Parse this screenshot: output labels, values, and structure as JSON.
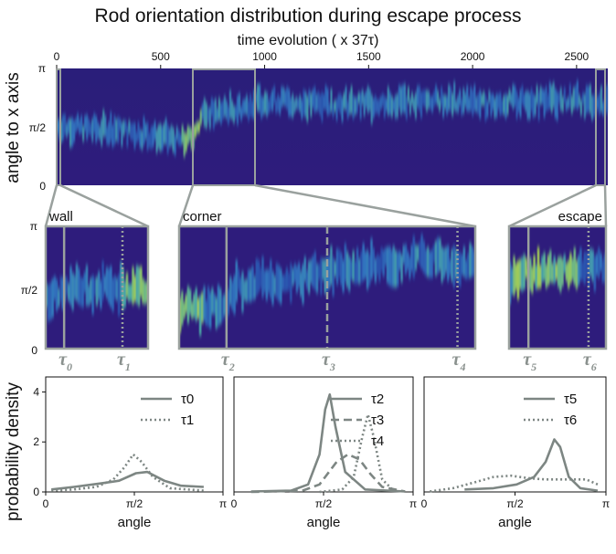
{
  "title": "Rod orientation distribution during escape process",
  "chart_data": [
    {
      "type": "heatmap",
      "title": "Rod orientation distribution during escape process",
      "xlabel": "time evolution ( x 37τ)",
      "ylabel": "angle to x axis",
      "xlim": [
        0,
        2650
      ],
      "x_ticks": [
        "0",
        "500",
        "1000",
        "1500",
        "2000",
        "2500"
      ],
      "x_tick_values": [
        0,
        500,
        1000,
        1500,
        2000,
        2500
      ],
      "y_ticks": [
        "0",
        "π/2",
        "π"
      ],
      "ylim": [
        0,
        3.1416
      ],
      "zoom_windows": [
        {
          "label": "wall",
          "start": 0,
          "end": 60
        },
        {
          "label": "corner",
          "start": 700,
          "end": 1000
        },
        {
          "label": "escape",
          "start": 2640,
          "end": 2650
        }
      ],
      "ridge": {
        "x": [
          0,
          100,
          200,
          300,
          400,
          500,
          600,
          650,
          700,
          800,
          900,
          1000,
          1200,
          1500,
          1800,
          2000,
          2200,
          2400,
          2650
        ],
        "y": [
          1.6,
          1.55,
          1.5,
          1.5,
          1.4,
          1.3,
          1.2,
          1.25,
          1.9,
          2.0,
          2.1,
          2.3,
          2.2,
          2.2,
          2.3,
          2.2,
          2.25,
          2.3,
          2.2
        ]
      }
    },
    {
      "type": "heatmap",
      "panel": "wall",
      "label": "wall",
      "ylim": [
        0,
        3.1416
      ],
      "y_ticks": [
        "0",
        "π/2",
        "π"
      ],
      "time_markers": [
        {
          "label": "τ",
          "sub": "0",
          "pos": 0.18,
          "style": "solid"
        },
        {
          "label": "τ",
          "sub": "1",
          "pos": 0.75,
          "style": "dotted"
        }
      ]
    },
    {
      "type": "heatmap",
      "panel": "corner",
      "label": "corner",
      "ylim": [
        0,
        3.1416
      ],
      "time_markers": [
        {
          "label": "τ",
          "sub": "2",
          "pos": 0.16,
          "style": "solid"
        },
        {
          "label": "τ",
          "sub": "3",
          "pos": 0.5,
          "style": "dashed"
        },
        {
          "label": "τ",
          "sub": "4",
          "pos": 0.94,
          "style": "dotted"
        }
      ]
    },
    {
      "type": "heatmap",
      "panel": "escape",
      "label": "escape",
      "ylim": [
        0,
        3.1416
      ],
      "time_markers": [
        {
          "label": "τ",
          "sub": "5",
          "pos": 0.2,
          "style": "solid"
        },
        {
          "label": "τ",
          "sub": "6",
          "pos": 0.82,
          "style": "dotted"
        }
      ]
    },
    {
      "type": "line",
      "ylabel": "probability density",
      "xlabel": "angle",
      "x_ticks": [
        "0",
        "π/2",
        "π"
      ],
      "y_ticks": [
        "0",
        "2",
        "4"
      ],
      "xlim": [
        0,
        3.1416
      ],
      "ylim": [
        0,
        4.6
      ],
      "series": [
        {
          "name": "τ0",
          "style": "solid",
          "x": [
            0.1,
            0.5,
            1.0,
            1.3,
            1.6,
            1.8,
            2.1,
            2.4,
            2.8
          ],
          "y": [
            0.1,
            0.2,
            0.35,
            0.45,
            0.75,
            0.8,
            0.45,
            0.25,
            0.2
          ]
        },
        {
          "name": "τ1",
          "style": "dotted",
          "x": [
            0.1,
            0.5,
            0.9,
            1.2,
            1.4,
            1.55,
            1.7,
            1.9,
            2.2,
            2.8
          ],
          "y": [
            0.05,
            0.1,
            0.2,
            0.5,
            1.0,
            1.5,
            1.2,
            0.6,
            0.15,
            0.05
          ]
        }
      ]
    },
    {
      "type": "line",
      "xlabel": "angle",
      "x_ticks": [
        "0",
        "π/2",
        "π"
      ],
      "xlim": [
        0,
        3.1416
      ],
      "ylim": [
        0,
        4.6
      ],
      "series": [
        {
          "name": "τ2",
          "style": "solid",
          "x": [
            0.3,
            1.0,
            1.3,
            1.5,
            1.6,
            1.68,
            1.78,
            1.95,
            2.3,
            3.0
          ],
          "y": [
            0.02,
            0.05,
            0.3,
            1.5,
            3.3,
            3.9,
            2.6,
            0.8,
            0.1,
            0.02
          ]
        },
        {
          "name": "τ3",
          "style": "dashed",
          "x": [
            0.3,
            1.2,
            1.5,
            1.8,
            2.0,
            2.2,
            2.4,
            2.6,
            3.0
          ],
          "y": [
            0.0,
            0.05,
            0.3,
            1.2,
            1.5,
            1.3,
            0.7,
            0.2,
            0.02
          ]
        },
        {
          "name": "τ4",
          "style": "dotted",
          "x": [
            1.5,
            1.9,
            2.1,
            2.25,
            2.35,
            2.45,
            2.6,
            2.8
          ],
          "y": [
            0.0,
            0.1,
            0.6,
            2.2,
            3.1,
            2.2,
            0.5,
            0.05
          ]
        }
      ]
    },
    {
      "type": "line",
      "xlabel": "angle",
      "x_ticks": [
        "0",
        "π/2",
        "π"
      ],
      "xlim": [
        0,
        3.1416
      ],
      "ylim": [
        0,
        4.6
      ],
      "series": [
        {
          "name": "τ5",
          "style": "solid",
          "x": [
            0.7,
            1.2,
            1.6,
            1.9,
            2.1,
            2.25,
            2.35,
            2.5,
            2.7,
            3.0
          ],
          "y": [
            0.1,
            0.15,
            0.3,
            0.6,
            1.2,
            2.1,
            1.8,
            0.6,
            0.15,
            0.05
          ]
        },
        {
          "name": "τ6",
          "style": "dotted",
          "x": [
            0.1,
            0.5,
            0.9,
            1.2,
            1.5,
            1.8,
            2.1,
            2.5,
            2.8,
            3.0
          ],
          "y": [
            0.02,
            0.15,
            0.4,
            0.6,
            0.65,
            0.55,
            0.5,
            0.5,
            0.5,
            0.3
          ]
        }
      ]
    }
  ]
}
